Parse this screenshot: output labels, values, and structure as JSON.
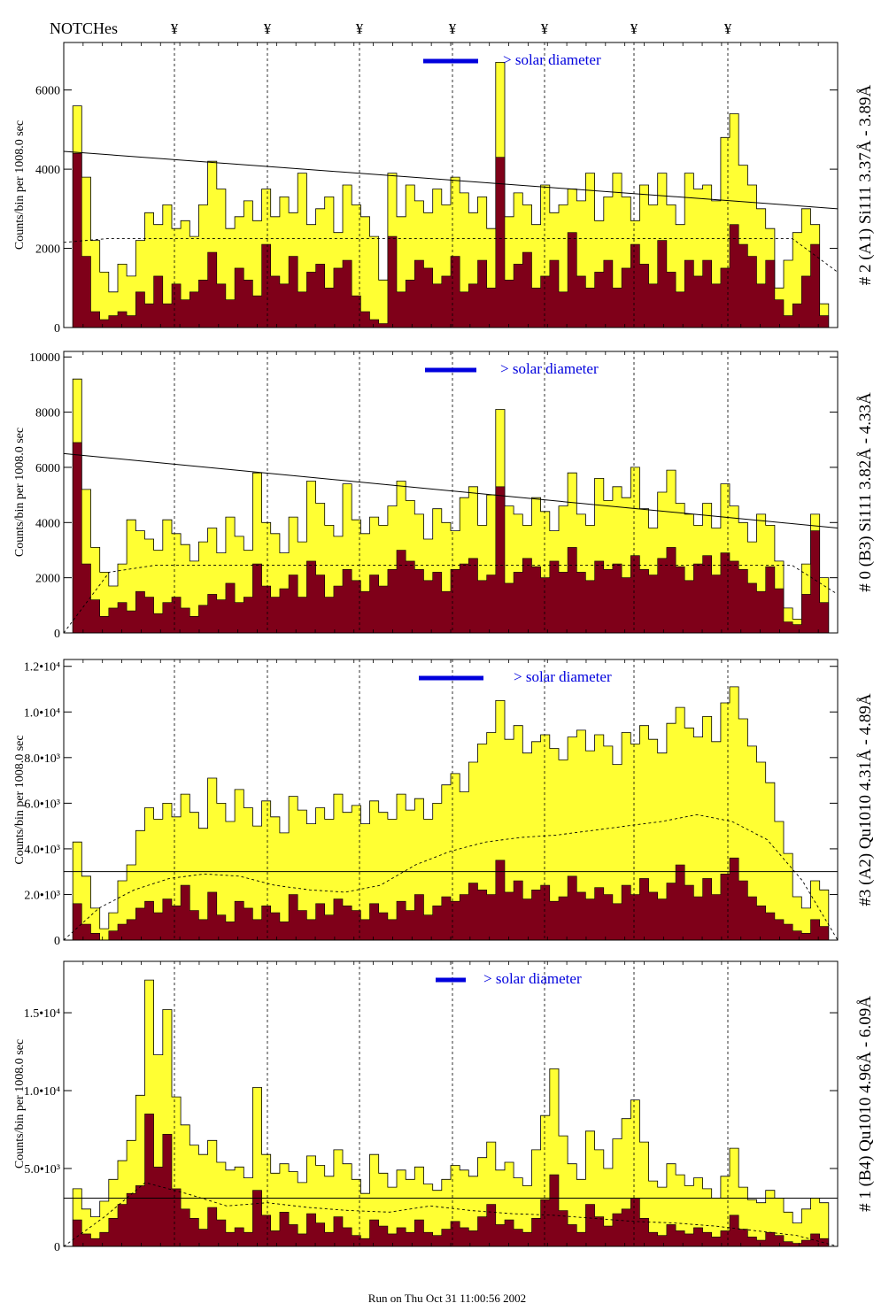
{
  "header": {
    "notch_label": "NOTCHes",
    "notch_symbol": "¥"
  },
  "footer": {
    "run_text": "Run on Thu Oct 31 11:00:56 2002"
  },
  "chart_data": [
    {
      "type": "area",
      "panel_label": "# 2 (A1) Si111  3.37Å - 3.89Å",
      "ylabel": "Counts/bin per   1008.0 sec",
      "yticks": [
        "0",
        "2000",
        "4000",
        "6000"
      ],
      "ytick_values": [
        0,
        2000,
        4000,
        6000
      ],
      "ylim": [
        0,
        7200
      ],
      "legend": "> solar diameter",
      "yellow": [
        0,
        5600,
        3800,
        2200,
        1400,
        900,
        1600,
        1300,
        2200,
        2900,
        2600,
        3100,
        2500,
        2700,
        2300,
        3100,
        4200,
        3500,
        2500,
        2800,
        3200,
        2700,
        3500,
        2800,
        3300,
        2900,
        3900,
        2600,
        3000,
        3300,
        2400,
        3600,
        3100,
        2800,
        2300,
        1200,
        3900,
        2800,
        3600,
        3200,
        2900,
        3500,
        3100,
        3800,
        3400,
        2900,
        3300,
        2500,
        6700,
        2800,
        3400,
        3100,
        2600,
        3600,
        2900,
        3100,
        3500,
        3200,
        3900,
        2700,
        3300,
        3900,
        3300,
        2700,
        3600,
        3100,
        3900,
        3100,
        2600,
        3900,
        3500,
        3600,
        3200,
        4800,
        5400,
        4100,
        3600,
        3000,
        2500,
        1000,
        1700,
        2400,
        3000,
        2600,
        600,
        0
      ],
      "red": [
        0,
        4400,
        1800,
        400,
        200,
        300,
        400,
        300,
        900,
        600,
        1300,
        600,
        1100,
        700,
        900,
        1200,
        1900,
        1100,
        700,
        1500,
        1200,
        800,
        2100,
        1300,
        1100,
        1800,
        900,
        1400,
        1600,
        1000,
        1500,
        1700,
        800,
        400,
        200,
        100,
        2300,
        900,
        1200,
        1700,
        1500,
        1100,
        1300,
        1800,
        900,
        1100,
        1700,
        1000,
        4300,
        1200,
        1600,
        1900,
        1000,
        1300,
        1700,
        900,
        2400,
        1300,
        1000,
        1400,
        1700,
        1000,
        1500,
        2100,
        1600,
        1100,
        2200,
        1400,
        900,
        1700,
        1300,
        1700,
        1100,
        1500,
        2600,
        2100,
        1800,
        1100,
        1700,
        700,
        300,
        600,
        1300,
        2100,
        300,
        0
      ],
      "trend": [
        4450,
        3000
      ],
      "dashed": [
        2150,
        2250,
        2250,
        2250,
        2250,
        2250,
        2250,
        2250,
        2250,
        2250,
        2250,
        2250,
        2250,
        2250,
        2250,
        2250,
        2250,
        1400
      ]
    },
    {
      "type": "area",
      "panel_label": "# 0 (B3) Si111  3.82Å - 4.33Å",
      "ylabel": "Counts/bin per   1008.0 sec",
      "yticks": [
        "0",
        "2000",
        "4000",
        "6000",
        "8000",
        "10000"
      ],
      "ytick_values": [
        0,
        2000,
        4000,
        6000,
        8000,
        10000
      ],
      "ylim": [
        0,
        10200
      ],
      "legend": "> solar diameter",
      "yellow": [
        0,
        9200,
        5200,
        3100,
        2200,
        1700,
        2500,
        4100,
        3700,
        3400,
        3000,
        4100,
        3600,
        3200,
        2600,
        3300,
        3800,
        2900,
        4200,
        3500,
        3000,
        5800,
        4000,
        3600,
        2900,
        4200,
        3300,
        5500,
        4700,
        3900,
        3500,
        5400,
        4100,
        3600,
        4200,
        3900,
        4600,
        5500,
        4800,
        4300,
        3400,
        4500,
        4000,
        3700,
        4900,
        5300,
        3900,
        5000,
        8100,
        4600,
        4300,
        3900,
        4900,
        4400,
        3700,
        4600,
        5800,
        4300,
        3900,
        5600,
        4800,
        5300,
        4900,
        6000,
        4500,
        3800,
        5100,
        5900,
        4700,
        4300,
        3900,
        4700,
        3800,
        5400,
        4600,
        4000,
        3300,
        4300,
        3900,
        2600,
        900,
        500,
        2500,
        4300,
        2000,
        0
      ],
      "red": [
        0,
        6900,
        2500,
        1200,
        600,
        900,
        1100,
        800,
        1500,
        1300,
        700,
        1100,
        1300,
        900,
        600,
        1000,
        1400,
        1200,
        1800,
        1100,
        1300,
        2500,
        1700,
        1300,
        1600,
        2100,
        1300,
        2600,
        2100,
        1300,
        1700,
        2300,
        1900,
        1500,
        2100,
        1700,
        2300,
        3000,
        2600,
        2300,
        1900,
        2200,
        1500,
        2300,
        2500,
        2700,
        1900,
        2100,
        5300,
        1800,
        2200,
        2700,
        2400,
        2000,
        2600,
        2200,
        3100,
        2200,
        1900,
        2600,
        2300,
        2500,
        2000,
        2800,
        2300,
        2100,
        2700,
        3100,
        2400,
        1900,
        2500,
        2800,
        2100,
        2900,
        2600,
        2300,
        1800,
        1500,
        2400,
        1600,
        400,
        300,
        1400,
        3700,
        1100,
        0
      ],
      "trend": [
        6500,
        3800
      ],
      "dashed": [
        0,
        2200,
        2450,
        2450,
        2450,
        2450,
        2450,
        2450,
        2450,
        2450,
        2450,
        2450,
        2450,
        2450,
        2450,
        2450,
        2450,
        1400
      ]
    },
    {
      "type": "area",
      "panel_label": "#3 (A2) Qu1010  4.31Å - 4.89Å",
      "ylabel": "Counts/bin per   1008.0 sec",
      "yticks": [
        "0",
        "2.0•10³",
        "4.0•10³",
        "6.0•10³",
        "8.0•10³",
        "1.0•10⁴",
        "1.2•10⁴"
      ],
      "ytick_values": [
        0,
        2000,
        4000,
        6000,
        8000,
        10000,
        12000
      ],
      "ylim": [
        0,
        12300
      ],
      "legend": "> solar diameter",
      "yellow": [
        0,
        4300,
        2800,
        1400,
        500,
        1200,
        2600,
        3300,
        4800,
        5800,
        5300,
        6000,
        5400,
        6400,
        5600,
        4900,
        7100,
        6000,
        5200,
        6600,
        5800,
        5000,
        6100,
        5400,
        4700,
        6300,
        5700,
        5100,
        5800,
        5300,
        6400,
        5600,
        5900,
        5100,
        6100,
        5600,
        5300,
        6400,
        5700,
        6200,
        5300,
        6000,
        6800,
        7300,
        6500,
        7800,
        8600,
        9100,
        10500,
        8800,
        9400,
        8200,
        8700,
        9000,
        8400,
        7900,
        8900,
        9200,
        8300,
        9000,
        8500,
        7700,
        9100,
        8600,
        9400,
        8800,
        8200,
        9500,
        10200,
        9300,
        8900,
        9800,
        8700,
        10400,
        11100,
        9700,
        8500,
        7800,
        6900,
        5200,
        3800,
        1900,
        1400,
        2600,
        2200,
        0
      ],
      "red": [
        0,
        1600,
        700,
        300,
        0,
        400,
        700,
        900,
        1400,
        1700,
        1200,
        1800,
        1500,
        2400,
        1300,
        900,
        2100,
        1100,
        800,
        1700,
        1400,
        900,
        1500,
        1200,
        800,
        2000,
        1300,
        900,
        1600,
        1100,
        1800,
        1500,
        1300,
        900,
        1600,
        1200,
        900,
        1700,
        1300,
        2000,
        1100,
        1500,
        1900,
        1700,
        2000,
        2500,
        2200,
        2000,
        3500,
        2100,
        2600,
        1800,
        2200,
        2400,
        1700,
        1900,
        2800,
        2100,
        1800,
        2300,
        2000,
        1600,
        2400,
        2000,
        2700,
        2100,
        1800,
        2500,
        3300,
        2400,
        1900,
        2700,
        2000,
        2900,
        3600,
        2600,
        1900,
        1500,
        1200,
        900,
        700,
        400,
        300,
        900,
        600,
        0
      ],
      "trend": [
        3000,
        3000
      ],
      "dashed": [
        0,
        1400,
        2200,
        2700,
        2900,
        2800,
        2400,
        2200,
        2100,
        2400,
        3300,
        3900,
        4300,
        4500,
        4600,
        4800,
        5000,
        5200,
        5500,
        5200,
        4400,
        2600,
        0
      ]
    },
    {
      "type": "area",
      "panel_label": "# 1 (B4) Qu1010 4.96Å - 6.09Å",
      "ylabel": "Counts/bin per   1008.0 sec",
      "yticks": [
        "0",
        "5.0•10³",
        "1.0•10⁴",
        "1.5•10⁴"
      ],
      "ytick_values": [
        0,
        5000,
        10000,
        15000
      ],
      "ylim": [
        0,
        18300
      ],
      "legend": "> solar diameter",
      "yellow": [
        0,
        3700,
        2400,
        1900,
        2900,
        4300,
        5500,
        6800,
        9700,
        17100,
        12300,
        15200,
        9600,
        7800,
        6500,
        5900,
        6800,
        5400,
        4900,
        5100,
        4400,
        10200,
        5900,
        4700,
        5300,
        4800,
        4100,
        5800,
        5200,
        4500,
        6200,
        5300,
        4300,
        3400,
        5900,
        4700,
        3800,
        4900,
        4300,
        5100,
        4000,
        3600,
        4300,
        5200,
        4900,
        4500,
        5700,
        6700,
        4900,
        5400,
        4400,
        3900,
        6200,
        8400,
        11400,
        7100,
        5300,
        4300,
        7400,
        6200,
        5000,
        6900,
        8200,
        9400,
        6700,
        4200,
        3800,
        5300,
        4600,
        3900,
        4400,
        3700,
        3100,
        4500,
        6300,
        3800,
        3000,
        2800,
        3600,
        3100,
        2200,
        1500,
        2400,
        3100,
        2800,
        0
      ],
      "red": [
        0,
        1700,
        800,
        500,
        900,
        1800,
        2700,
        3400,
        3900,
        8500,
        5100,
        7200,
        3700,
        2400,
        1800,
        1100,
        2500,
        1700,
        900,
        1200,
        900,
        3600,
        2000,
        1000,
        2200,
        1400,
        800,
        2100,
        1500,
        900,
        1900,
        1200,
        700,
        500,
        1700,
        1300,
        800,
        1200,
        900,
        1700,
        900,
        700,
        1100,
        1600,
        1200,
        1000,
        1900,
        2700,
        1400,
        1700,
        1100,
        900,
        1800,
        3000,
        4600,
        2300,
        1400,
        900,
        2700,
        1900,
        1300,
        2100,
        2400,
        3100,
        1800,
        900,
        700,
        1400,
        1000,
        800,
        1200,
        900,
        600,
        1000,
        2000,
        1100,
        600,
        400,
        900,
        700,
        300,
        200,
        400,
        800,
        500,
        0
      ],
      "trend": [
        3100,
        3100
      ],
      "dashed": [
        0,
        1900,
        4100,
        3400,
        2600,
        2800,
        2500,
        2300,
        2200,
        2600,
        2300,
        2100,
        2000,
        1800,
        1600,
        1500,
        1300,
        1000,
        700,
        0
      ]
    }
  ]
}
